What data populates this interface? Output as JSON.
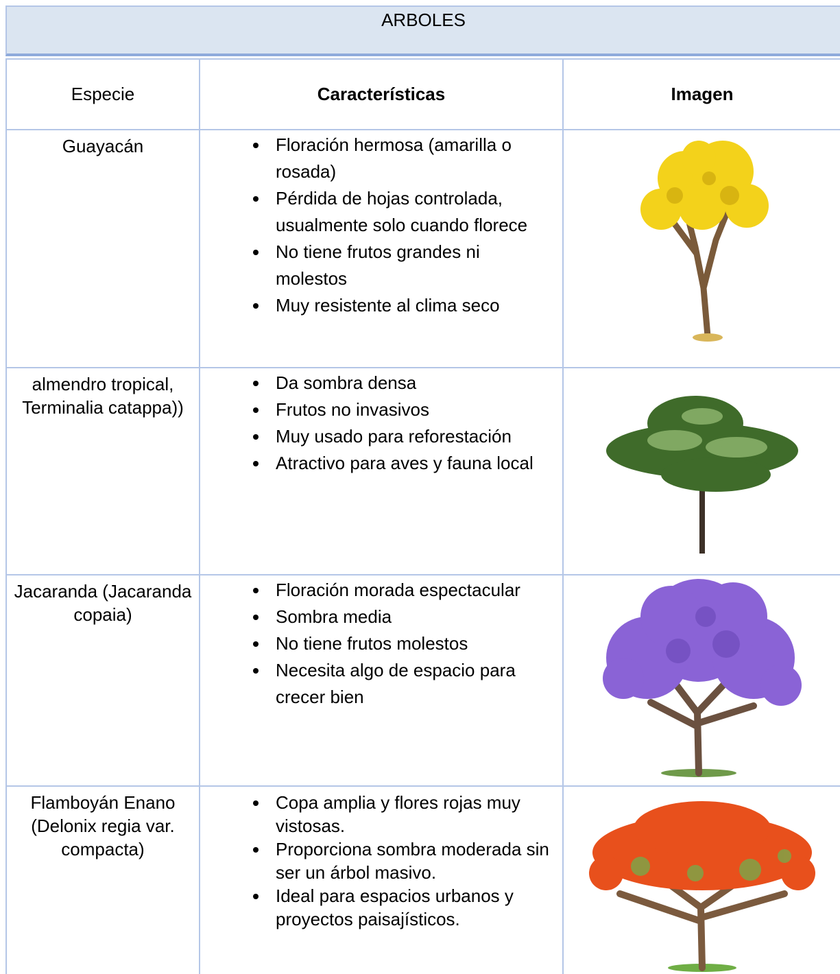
{
  "header": {
    "title": "ARBOLES"
  },
  "table": {
    "columns": [
      "Especie",
      "Características",
      "Imagen"
    ],
    "rows": [
      {
        "species": "Guayacán",
        "features": [
          "Floración hermosa (amarilla o rosada)",
          "Pérdida de hojas controlada, usualmente solo cuando florece",
          "No tiene frutos grandes ni molestos",
          "Muy resistente al clima seco"
        ]
      },
      {
        "species": "almendro tropical, Terminalia catappa))",
        "features": [
          "Da sombra densa",
          "Frutos no invasivos",
          "Muy usado para reforestación",
          "Atractivo para aves y fauna local"
        ]
      },
      {
        "species": "Jacaranda (Jacaranda copaia)",
        "features": [
          "Floración morada espectacular",
          "Sombra media",
          "No tiene frutos molestos",
          "Necesita algo de espacio para crecer bien"
        ]
      },
      {
        "species": "Flamboyán Enano (Delonix regia var. compacta)",
        "features": [
          "Copa amplia y flores rojas muy vistosas.",
          "Proporciona sombra moderada sin ser un árbol masivo.",
          "Ideal para espacios urbanos y proyectos paisajísticos."
        ]
      }
    ]
  }
}
